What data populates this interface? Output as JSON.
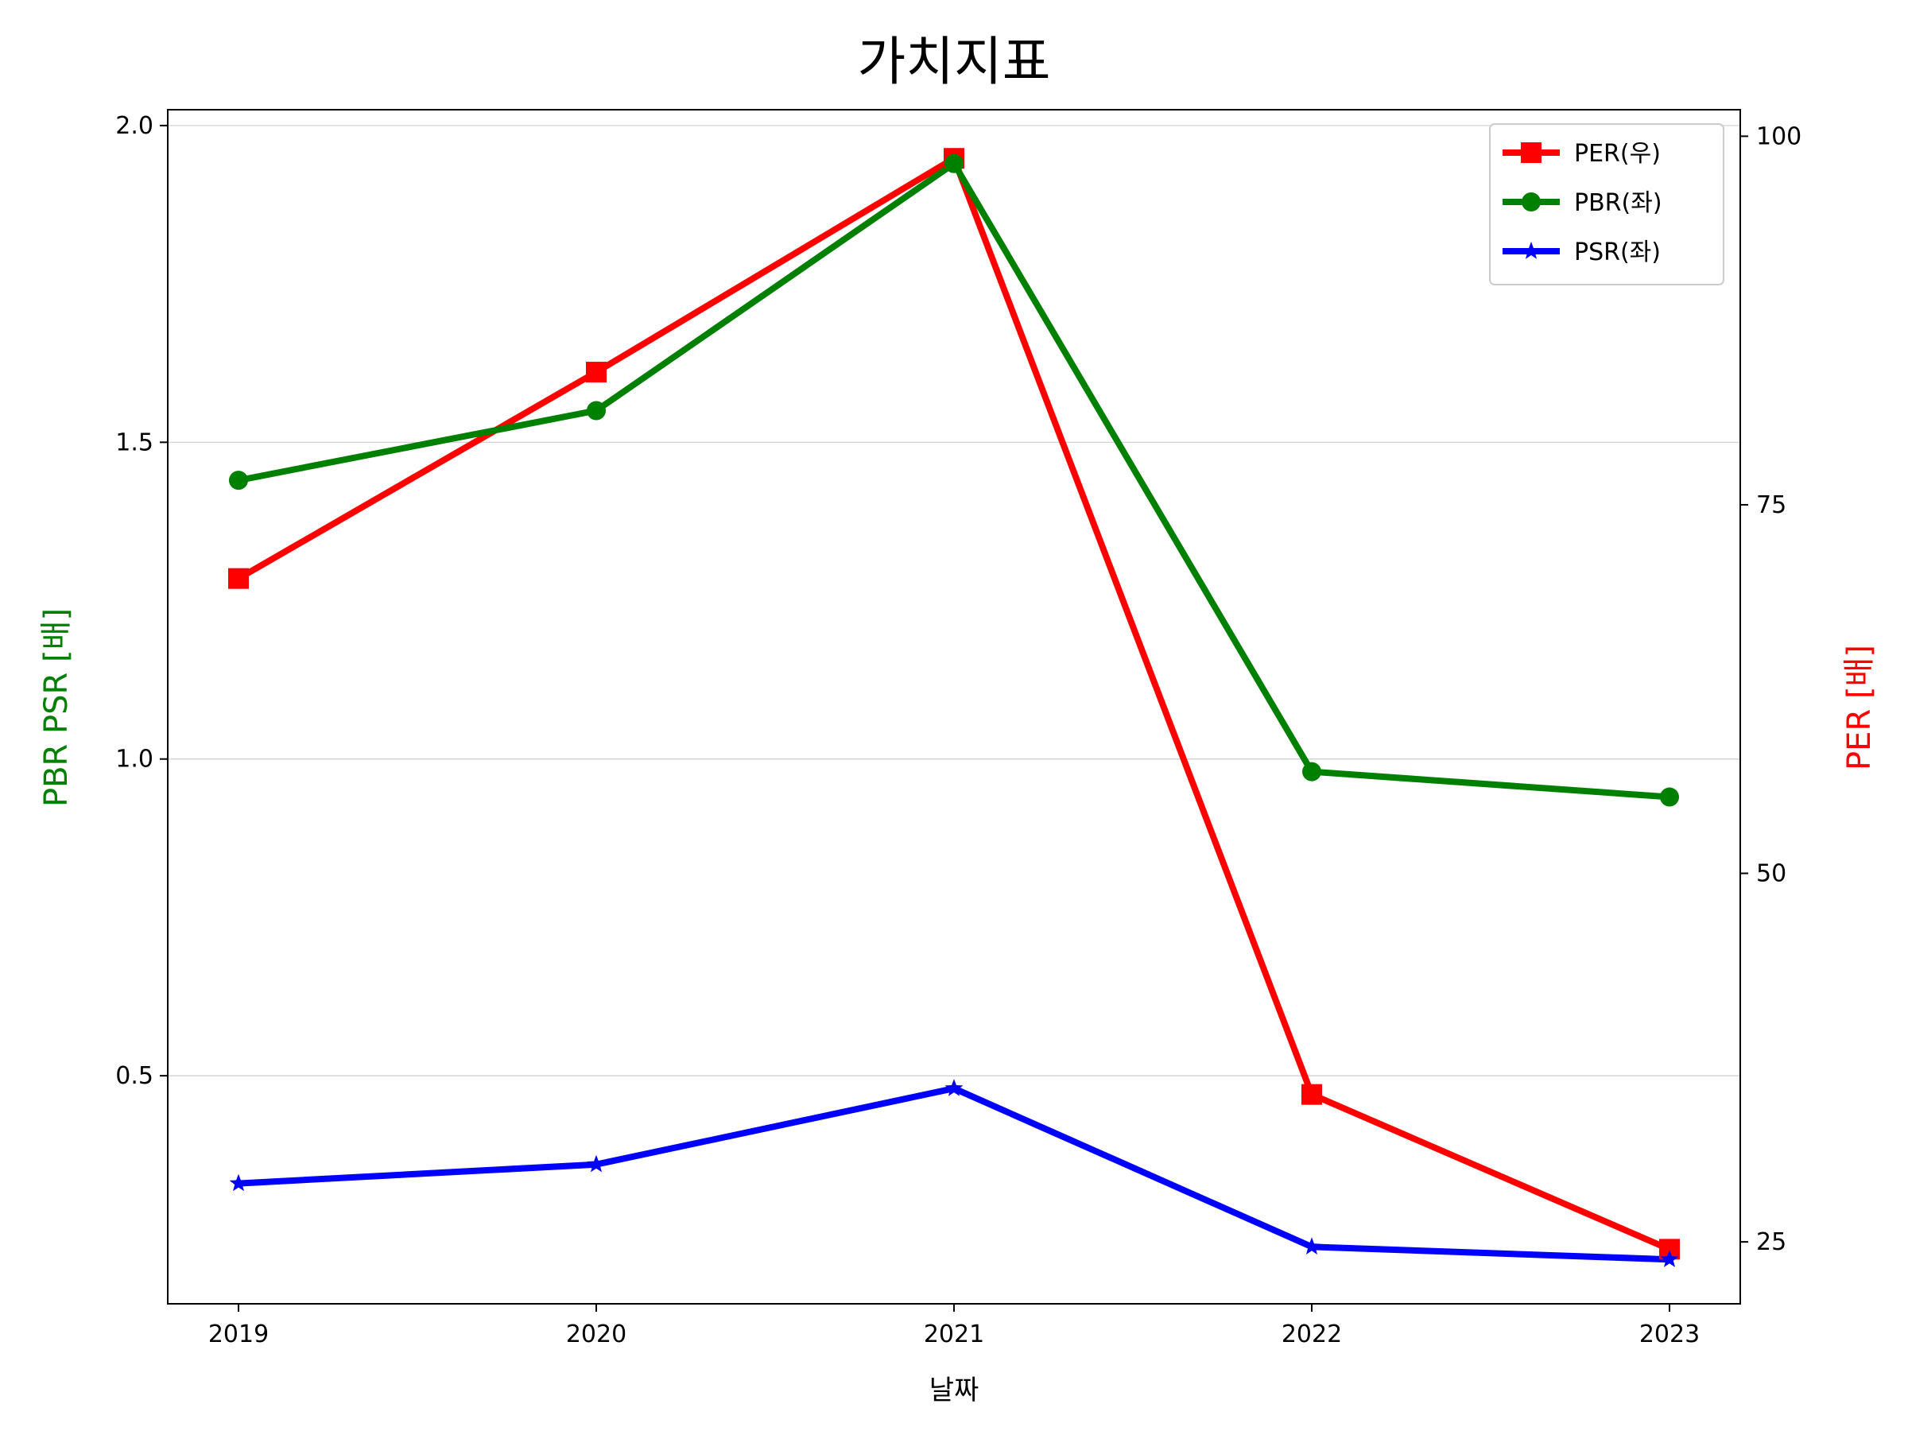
{
  "chart_data": {
    "type": "line",
    "title": "가치지표",
    "xlabel": "날짜",
    "ylabel_left": "PBR PSR [배]",
    "ylabel_right": "PER [배]",
    "categories": [
      "2019",
      "2020",
      "2021",
      "2022",
      "2023"
    ],
    "ylim_left": [
      0.14,
      2.025
    ],
    "ylim_right": [
      20.8,
      101.8
    ],
    "yticks_left": [
      0.5,
      1.0,
      1.5,
      2.0
    ],
    "ytick_labels_left": [
      "0.5",
      "1.0",
      "1.5",
      "2.0"
    ],
    "yticks_right": [
      25,
      50,
      75,
      100
    ],
    "ytick_labels_right": [
      "25",
      "50",
      "75",
      "100"
    ],
    "grid": "horizontal (left axis)",
    "legend_position": "top-right",
    "series": [
      {
        "name": "PER(우)",
        "axis": "right",
        "color": "#ff0000",
        "marker": "square",
        "values": [
          70.0,
          84.0,
          98.5,
          35.0,
          24.5
        ]
      },
      {
        "name": "PBR(좌)",
        "axis": "left",
        "color": "#008000",
        "marker": "circle",
        "values": [
          1.44,
          1.55,
          1.94,
          0.98,
          0.94
        ]
      },
      {
        "name": "PSR(좌)",
        "axis": "left",
        "color": "#0000ff",
        "marker": "star",
        "values": [
          0.33,
          0.36,
          0.48,
          0.23,
          0.21
        ]
      }
    ]
  }
}
